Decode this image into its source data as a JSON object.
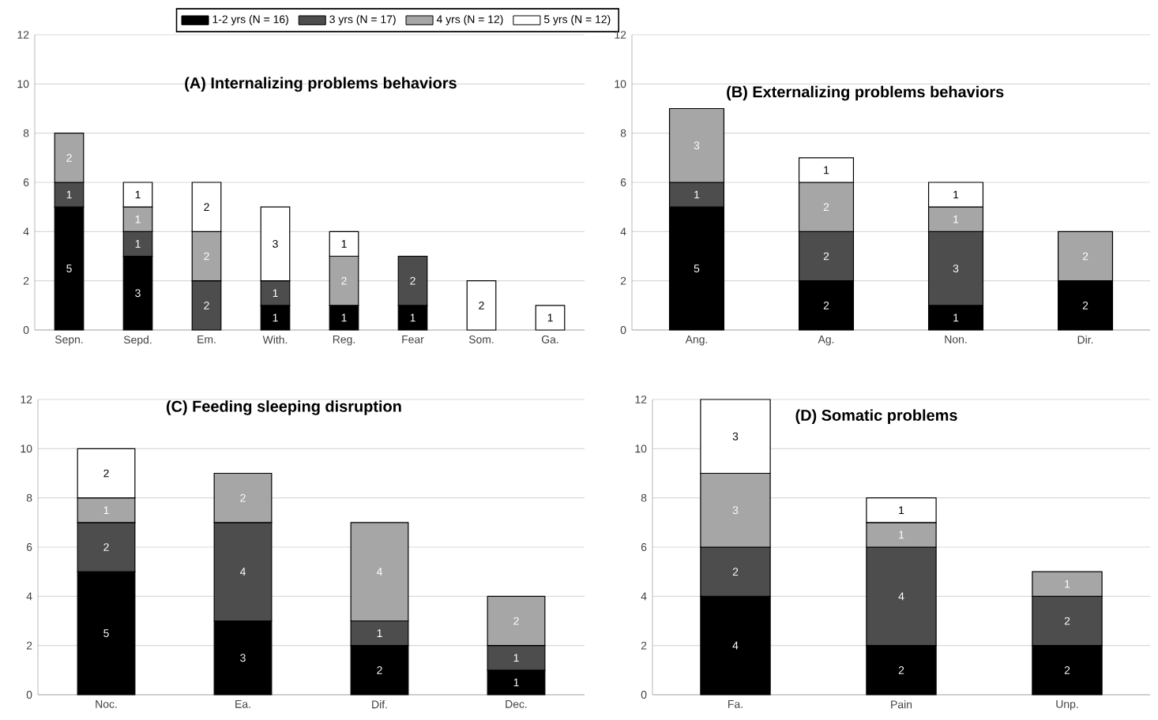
{
  "chart_data": [
    {
      "type": "bar",
      "title": "(A)  Internalizing problems behaviors",
      "categories": [
        "Sepn.",
        "Sepd.",
        "Em.",
        "With.",
        "Reg.",
        "Fear",
        "Som.",
        "Ga."
      ],
      "stacked": true,
      "ylim": [
        0,
        12
      ],
      "yticks": [
        0,
        2,
        4,
        6,
        8,
        10,
        12
      ],
      "grid": "y",
      "legend": "top",
      "data_labels": true,
      "series": [
        {
          "name": "1-2 yrs (N = 16)",
          "color": "#000000",
          "values": [
            5,
            3,
            null,
            1,
            1,
            1,
            null,
            null
          ]
        },
        {
          "name": "3 yrs (N = 17)",
          "color": "#4d4d4d",
          "values": [
            1,
            1,
            2,
            1,
            null,
            2,
            null,
            null
          ]
        },
        {
          "name": "4 yrs (N = 12)",
          "color": "#a6a6a6",
          "values": [
            2,
            1,
            2,
            null,
            2,
            null,
            null,
            null
          ]
        },
        {
          "name": "5 yrs (N = 12)",
          "color": "#ffffff",
          "values": [
            null,
            1,
            2,
            3,
            1,
            null,
            2,
            1
          ]
        }
      ]
    },
    {
      "type": "bar",
      "title": "(B)  Externalizing problems behaviors",
      "categories": [
        "Ang.",
        "Ag.",
        "Non.",
        "Dir."
      ],
      "stacked": true,
      "ylim": [
        0,
        12
      ],
      "yticks": [
        0,
        2,
        4,
        6,
        8,
        10,
        12
      ],
      "grid": "y",
      "data_labels": true,
      "series": [
        {
          "color": "#000000",
          "values": [
            5,
            2,
            1,
            2
          ]
        },
        {
          "color": "#4d4d4d",
          "values": [
            1,
            2,
            3,
            null
          ]
        },
        {
          "color": "#a6a6a6",
          "values": [
            3,
            2,
            1,
            2
          ]
        },
        {
          "color": "#ffffff",
          "values": [
            null,
            1,
            1,
            null
          ]
        }
      ]
    },
    {
      "type": "bar",
      "title": "(C)  Feeding sleeping disruption",
      "categories": [
        "Noc.",
        "Ea.",
        "Dif.",
        "Dec."
      ],
      "stacked": true,
      "ylim": [
        0,
        12
      ],
      "yticks": [
        0,
        2,
        4,
        6,
        8,
        10,
        12
      ],
      "grid": "y",
      "data_labels": true,
      "series": [
        {
          "color": "#000000",
          "values": [
            5,
            3,
            2,
            1
          ]
        },
        {
          "color": "#4d4d4d",
          "values": [
            2,
            4,
            1,
            1
          ]
        },
        {
          "color": "#a6a6a6",
          "values": [
            1,
            2,
            4,
            2
          ]
        },
        {
          "color": "#ffffff",
          "values": [
            2,
            null,
            null,
            null
          ]
        }
      ]
    },
    {
      "type": "bar",
      "title": "(D)  Somatic problems",
      "categories": [
        "Fa.",
        "Pain",
        "Unp."
      ],
      "stacked": true,
      "ylim": [
        0,
        12
      ],
      "yticks": [
        0,
        2,
        4,
        6,
        8,
        10,
        12
      ],
      "grid": "y",
      "data_labels": true,
      "series": [
        {
          "color": "#000000",
          "values": [
            4,
            2,
            2
          ]
        },
        {
          "color": "#4d4d4d",
          "values": [
            2,
            4,
            2
          ]
        },
        {
          "color": "#a6a6a6",
          "values": [
            3,
            1,
            1
          ]
        },
        {
          "color": "#ffffff",
          "values": [
            3,
            1,
            null
          ]
        }
      ]
    }
  ]
}
